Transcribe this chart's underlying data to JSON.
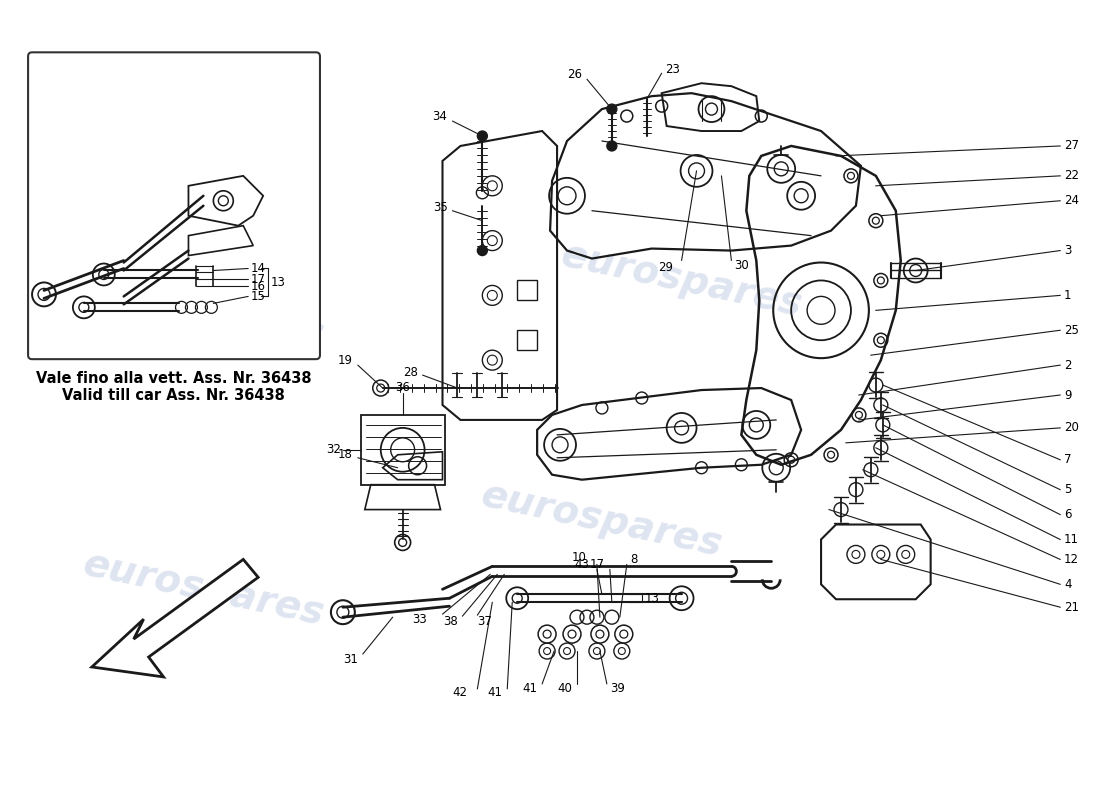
{
  "background_color": "#ffffff",
  "watermark_text": "eurospares",
  "watermark_color": "#c8d4e8",
  "caption_line1": "Vale fino alla vett. Ass. Nr. 36438",
  "caption_line2": "Valid till car Ass. Nr. 36438",
  "caption_fontsize": 10.5,
  "label_fontsize": 8.5,
  "fig_width": 11.0,
  "fig_height": 8.0,
  "dpi": 100
}
